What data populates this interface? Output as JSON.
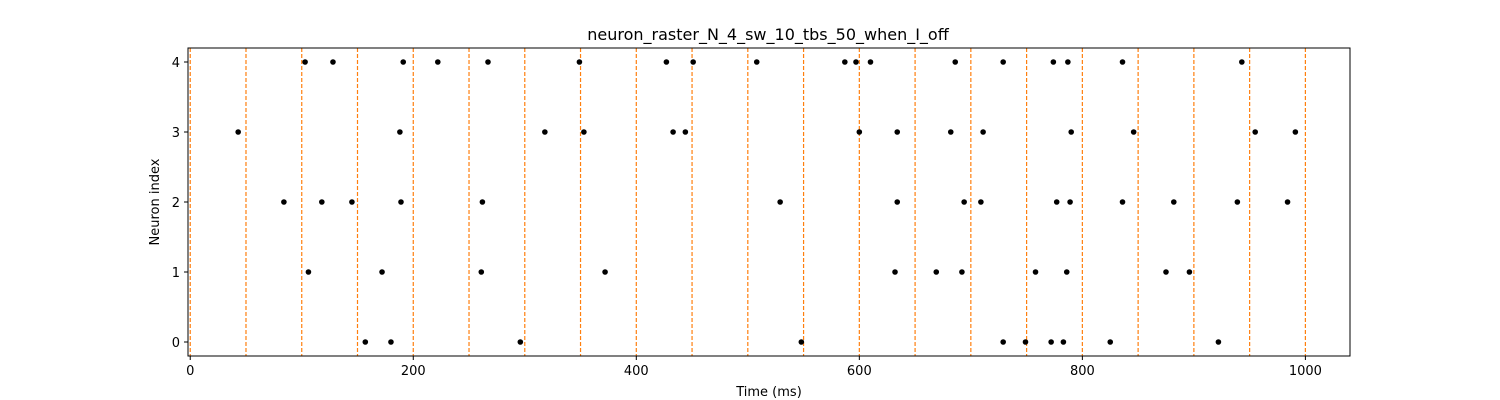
{
  "chart_data": {
    "type": "scatter",
    "title": "neuron_raster_N_4_sw_10_tbs_50_when_I_off",
    "xlabel": "Time (ms)",
    "ylabel": "Neuron index",
    "xlim": [
      -2,
      1040
    ],
    "ylim": [
      -0.2,
      4.2
    ],
    "x_ticks": [
      0,
      200,
      400,
      600,
      800,
      1000
    ],
    "y_ticks": [
      0,
      1,
      2,
      3,
      4
    ],
    "grid": false,
    "marker_color": "#000000",
    "vline_color": "#ff7f0e",
    "vlines_x": [
      0,
      50,
      100,
      150,
      200,
      250,
      300,
      350,
      400,
      450,
      500,
      550,
      600,
      650,
      700,
      750,
      800,
      850,
      900,
      950,
      1000
    ],
    "spikes": [
      {
        "neuron": 0,
        "times": [
          157,
          180,
          296,
          548,
          729,
          749,
          772,
          783,
          825,
          922
        ]
      },
      {
        "neuron": 1,
        "times": [
          106,
          172,
          261,
          372,
          632,
          669,
          692,
          758,
          786,
          875,
          896
        ]
      },
      {
        "neuron": 2,
        "times": [
          84,
          118,
          145,
          189,
          262,
          529,
          634,
          694,
          709,
          777,
          789,
          836,
          882,
          939,
          984
        ]
      },
      {
        "neuron": 3,
        "times": [
          43,
          188,
          318,
          353,
          433,
          444,
          600,
          634,
          682,
          711,
          790,
          846,
          955,
          991
        ]
      },
      {
        "neuron": 4,
        "times": [
          103,
          128,
          191,
          222,
          267,
          349,
          427,
          451,
          508,
          587,
          597,
          610,
          686,
          729,
          774,
          787,
          836,
          943
        ]
      }
    ]
  }
}
